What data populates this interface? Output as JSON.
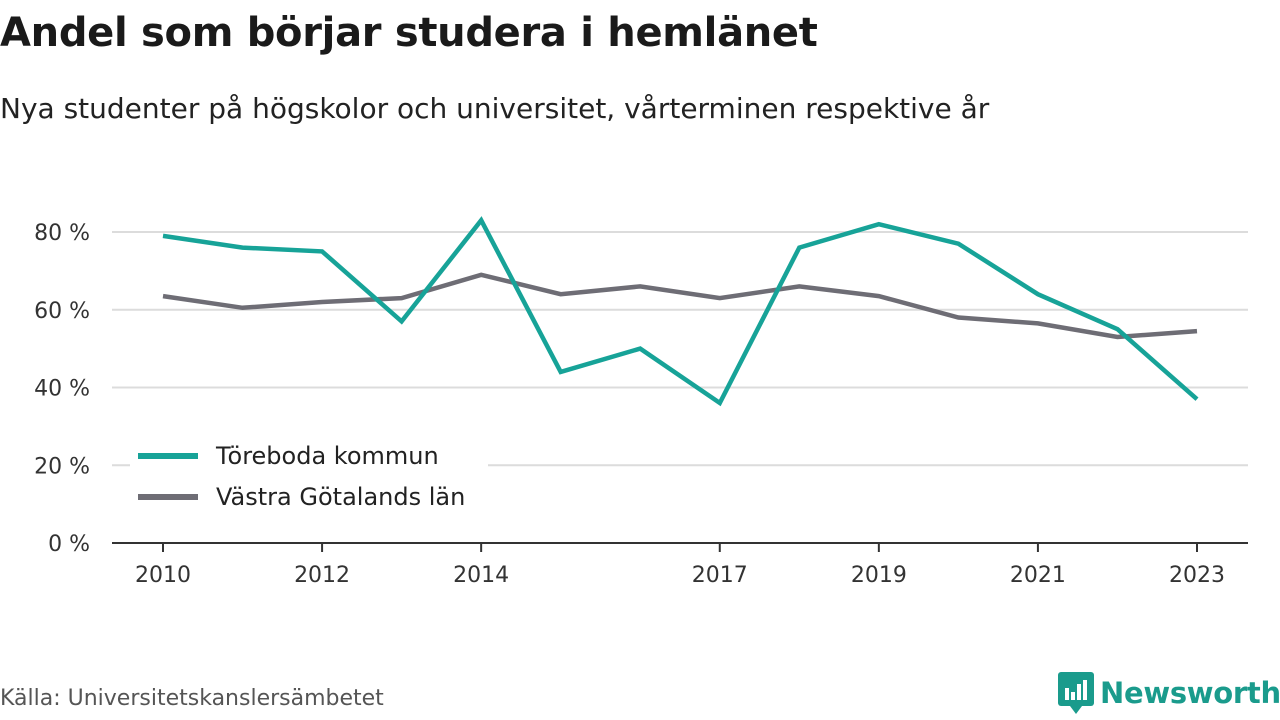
{
  "title": "Andel som börjar studera i hemlänet",
  "subtitle": "Nya studenter på högskolor och universitet, vårterminen respektive år",
  "source": "Källa: Universitetskanslersämbetet",
  "brand": {
    "name": "Newsworthy",
    "icon": "newsworthy-logo-icon",
    "color": "#1a9b8c"
  },
  "chart_data": {
    "type": "line",
    "x": [
      2010,
      2011,
      2012,
      2013,
      2014,
      2015,
      2016,
      2017,
      2018,
      2019,
      2020,
      2021,
      2022,
      2023
    ],
    "x_tick_labels": [
      "2010",
      "2012",
      "2014",
      "2017",
      "2019",
      "2021",
      "2023"
    ],
    "y_ticks": [
      0,
      20,
      40,
      60,
      80
    ],
    "y_tick_labels": [
      "0 %",
      "20 %",
      "40 %",
      "60 %",
      "80 %"
    ],
    "ylim": [
      0,
      80
    ],
    "grid": true,
    "legend_position": "bottom-left",
    "series": [
      {
        "name": "Töreboda kommun",
        "color": "#17a398",
        "values": [
          79,
          76,
          75,
          57,
          83,
          44,
          50,
          36,
          76,
          82,
          77,
          64,
          55,
          37
        ]
      },
      {
        "name": "Västra Götalands län",
        "color": "#6e6d75",
        "values": [
          63.5,
          60.5,
          62,
          63,
          69,
          64,
          66,
          63,
          66,
          63.5,
          58,
          56.5,
          53,
          54.5
        ]
      }
    ]
  }
}
